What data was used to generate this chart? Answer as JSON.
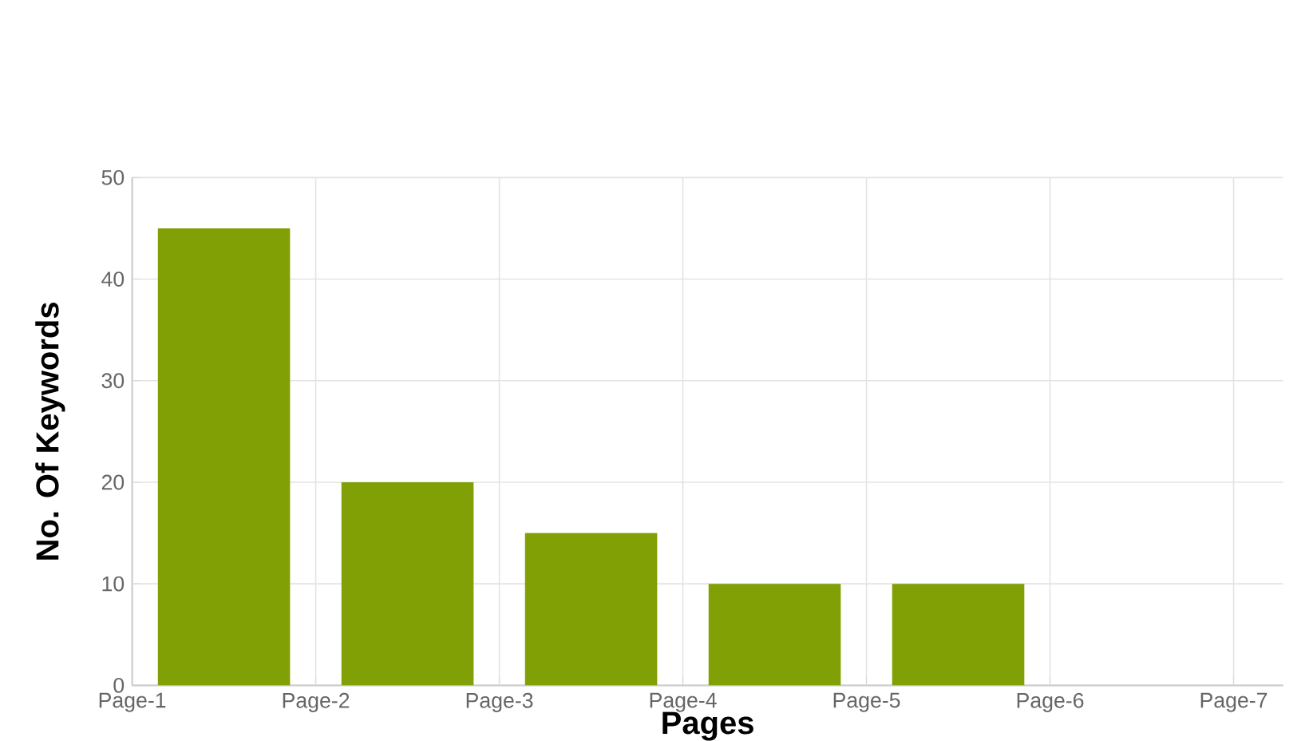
{
  "chart_data": {
    "type": "bar",
    "xlabel": "Pages",
    "ylabel": "No. Of Keywords",
    "categories": [
      "Page-1",
      "Page-2",
      "Page-3",
      "Page-4",
      "Page-5",
      "Page-6",
      "Page-7"
    ],
    "values": [
      45,
      20,
      15,
      10,
      10,
      null,
      null
    ],
    "color": "#80a005",
    "ylim": [
      0,
      50
    ],
    "yticks": [
      0,
      10,
      20,
      30,
      40,
      50
    ],
    "grid": true
  }
}
